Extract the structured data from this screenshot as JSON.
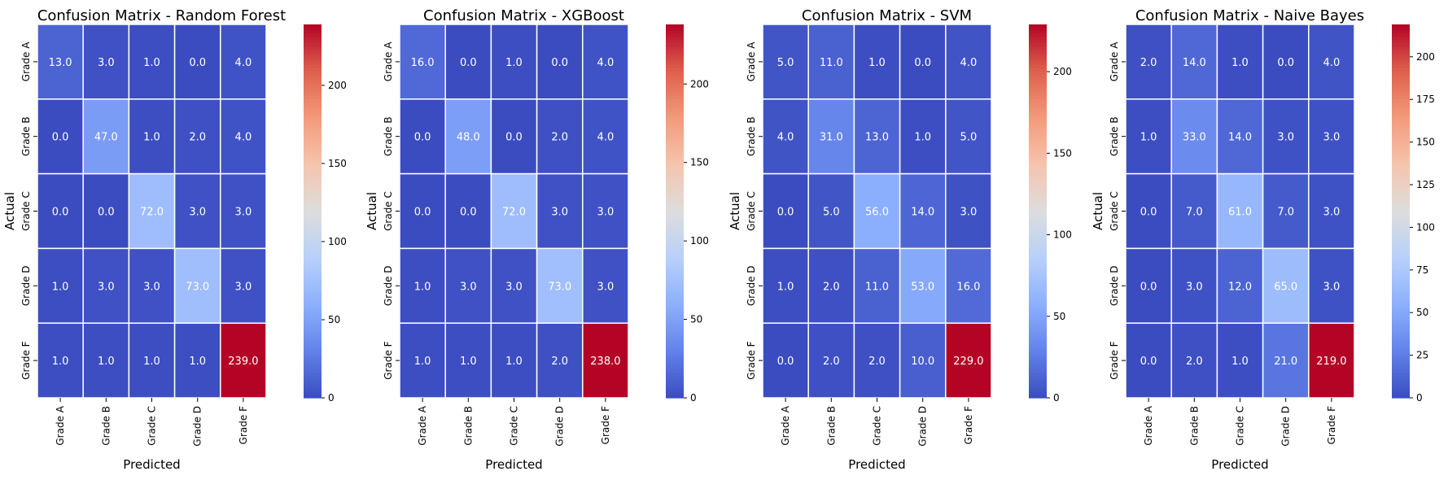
{
  "chart_data": [
    {
      "type": "heatmap",
      "title": "Confusion Matrix - Random Forest",
      "xlabel": "Predicted",
      "ylabel": "Actual",
      "x_categories": [
        "Grade A",
        "Grade B",
        "Grade C",
        "Grade D",
        "Grade F"
      ],
      "y_categories": [
        "Grade A",
        "Grade B",
        "Grade C",
        "Grade D",
        "Grade F"
      ],
      "values": [
        [
          13,
          3,
          1,
          0,
          4
        ],
        [
          0,
          47,
          1,
          2,
          4
        ],
        [
          0,
          0,
          72,
          3,
          3
        ],
        [
          1,
          3,
          3,
          73,
          3
        ],
        [
          1,
          1,
          1,
          1,
          239
        ]
      ],
      "cell_labels": [
        [
          "13.0",
          "3.0",
          "1.0",
          "0.0",
          "4.0"
        ],
        [
          "0.0",
          "47.0",
          "1.0",
          "2.0",
          "4.0"
        ],
        [
          "0.0",
          "0.0",
          "72.0",
          "3.0",
          "3.0"
        ],
        [
          "1.0",
          "3.0",
          "3.0",
          "73.0",
          "3.0"
        ],
        [
          "1.0",
          "1.0",
          "1.0",
          "1.0",
          "239.0"
        ]
      ],
      "vmin": 0,
      "vmax": 239,
      "colorbar_ticks": [
        0,
        50,
        100,
        150,
        200
      ],
      "colorbar_tick_labels": [
        "0",
        "50",
        "100",
        "150",
        "200"
      ],
      "colormap": "coolwarm"
    },
    {
      "type": "heatmap",
      "title": "Confusion Matrix - XGBoost",
      "xlabel": "Predicted",
      "ylabel": "Actual",
      "x_categories": [
        "Grade A",
        "Grade B",
        "Grade C",
        "Grade D",
        "Grade F"
      ],
      "y_categories": [
        "Grade A",
        "Grade B",
        "Grade C",
        "Grade D",
        "Grade F"
      ],
      "values": [
        [
          16,
          0,
          1,
          0,
          4
        ],
        [
          0,
          48,
          0,
          2,
          4
        ],
        [
          0,
          0,
          72,
          3,
          3
        ],
        [
          1,
          3,
          3,
          73,
          3
        ],
        [
          1,
          1,
          1,
          2,
          238
        ]
      ],
      "cell_labels": [
        [
          "16.0",
          "0.0",
          "1.0",
          "0.0",
          "4.0"
        ],
        [
          "0.0",
          "48.0",
          "0.0",
          "2.0",
          "4.0"
        ],
        [
          "0.0",
          "0.0",
          "72.0",
          "3.0",
          "3.0"
        ],
        [
          "1.0",
          "3.0",
          "3.0",
          "73.0",
          "3.0"
        ],
        [
          "1.0",
          "1.0",
          "1.0",
          "2.0",
          "238.0"
        ]
      ],
      "vmin": 0,
      "vmax": 238,
      "colorbar_ticks": [
        0,
        50,
        100,
        150,
        200
      ],
      "colorbar_tick_labels": [
        "0",
        "50",
        "100",
        "150",
        "200"
      ],
      "colormap": "coolwarm"
    },
    {
      "type": "heatmap",
      "title": "Confusion Matrix - SVM",
      "xlabel": "Predicted",
      "ylabel": "Actual",
      "x_categories": [
        "Grade A",
        "Grade B",
        "Grade C",
        "Grade D",
        "Grade F"
      ],
      "y_categories": [
        "Grade A",
        "Grade B",
        "Grade C",
        "Grade D",
        "Grade F"
      ],
      "values": [
        [
          5,
          11,
          1,
          0,
          4
        ],
        [
          4,
          31,
          13,
          1,
          5
        ],
        [
          0,
          5,
          56,
          14,
          3
        ],
        [
          1,
          2,
          11,
          53,
          16
        ],
        [
          0,
          2,
          2,
          10,
          229
        ]
      ],
      "cell_labels": [
        [
          "5.0",
          "11.0",
          "1.0",
          "0.0",
          "4.0"
        ],
        [
          "4.0",
          "31.0",
          "13.0",
          "1.0",
          "5.0"
        ],
        [
          "0.0",
          "5.0",
          "56.0",
          "14.0",
          "3.0"
        ],
        [
          "1.0",
          "2.0",
          "11.0",
          "53.0",
          "16.0"
        ],
        [
          "0.0",
          "2.0",
          "2.0",
          "10.0",
          "229.0"
        ]
      ],
      "vmin": 0,
      "vmax": 229,
      "colorbar_ticks": [
        0,
        50,
        100,
        150,
        200
      ],
      "colorbar_tick_labels": [
        "0",
        "50",
        "100",
        "150",
        "200"
      ],
      "colormap": "coolwarm"
    },
    {
      "type": "heatmap",
      "title": "Confusion Matrix - Naive Bayes",
      "xlabel": "Predicted",
      "ylabel": "Actual",
      "x_categories": [
        "Grade A",
        "Grade B",
        "Grade C",
        "Grade D",
        "Grade F"
      ],
      "y_categories": [
        "Grade A",
        "Grade B",
        "Grade C",
        "Grade D",
        "Grade F"
      ],
      "values": [
        [
          2,
          14,
          1,
          0,
          4
        ],
        [
          1,
          33,
          14,
          3,
          3
        ],
        [
          0,
          7,
          61,
          7,
          3
        ],
        [
          0,
          3,
          12,
          65,
          3
        ],
        [
          0,
          2,
          1,
          21,
          219
        ]
      ],
      "cell_labels": [
        [
          "2.0",
          "14.0",
          "1.0",
          "0.0",
          "4.0"
        ],
        [
          "1.0",
          "33.0",
          "14.0",
          "3.0",
          "3.0"
        ],
        [
          "0.0",
          "7.0",
          "61.0",
          "7.0",
          "3.0"
        ],
        [
          "0.0",
          "3.0",
          "12.0",
          "65.0",
          "3.0"
        ],
        [
          "0.0",
          "2.0",
          "1.0",
          "21.0",
          "219.0"
        ]
      ],
      "vmin": 0,
      "vmax": 219,
      "colorbar_ticks": [
        0,
        25,
        50,
        75,
        100,
        125,
        150,
        175,
        200
      ],
      "colorbar_tick_labels": [
        "0",
        "25",
        "50",
        "75",
        "100",
        "125",
        "150",
        "175",
        "200"
      ],
      "colormap": "coolwarm"
    }
  ]
}
